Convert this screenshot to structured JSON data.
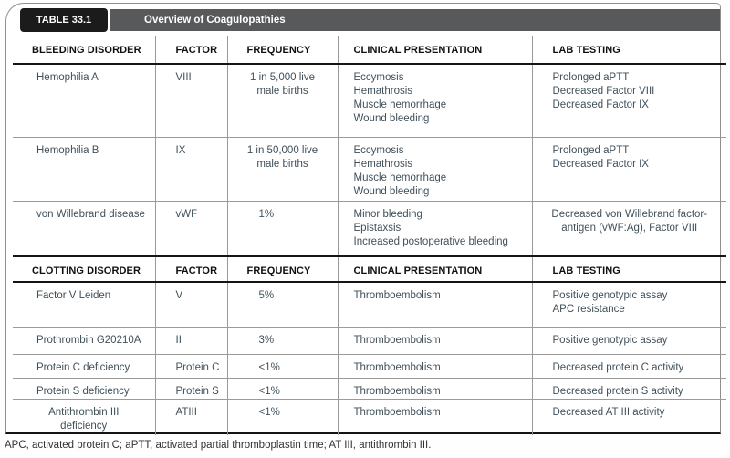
{
  "table": {
    "label": "TABLE 33.1",
    "title": "Overview of Coagulopathies",
    "sections": [
      {
        "headers": [
          "BLEEDING DISORDER",
          "FACTOR",
          "FREQUENCY",
          "CLINICAL PRESENTATION",
          "LAB TESTING"
        ],
        "rows": [
          {
            "disorder": "Hemophilia A",
            "factor": "VIII",
            "frequency": "1 in 5,000 live\nmale births",
            "clinical": "Eccymosis\nHemathrosis\nMuscle hemorrhage\nWound bleeding",
            "lab": "Prolonged aPTT\nDecreased Factor VIII\nDecreased Factor IX"
          },
          {
            "disorder": "Hemophilia B",
            "factor": "IX",
            "frequency": "1 in 50,000 live\nmale births",
            "clinical": "Eccymosis\nHemathrosis\nMuscle hemorrhage\nWound bleeding",
            "lab": "Prolonged aPTT\nDecreased Factor IX"
          },
          {
            "disorder": "von Willebrand disease",
            "factor": "vWF",
            "frequency": "1%",
            "clinical": "Minor bleeding\nEpistaxsis\nIncreased postoperative bleeding",
            "lab": "Decreased von Willebrand factor-\nantigen (vWF:Ag), Factor VIII"
          }
        ]
      },
      {
        "headers": [
          "CLOTTING DISORDER",
          "FACTOR",
          "FREQUENCY",
          "CLINICAL PRESENTATION",
          "LAB TESTING"
        ],
        "rows": [
          {
            "disorder": "Factor V Leiden",
            "factor": "V",
            "frequency": "5%",
            "clinical": "Thromboembolism",
            "lab": "Positive genotypic assay\nAPC resistance"
          },
          {
            "disorder": "Prothrombin G20210A",
            "factor": "II",
            "frequency": "3%",
            "clinical": "Thromboembolism",
            "lab": "Positive genotypic assay"
          },
          {
            "disorder": "Protein C deficiency",
            "factor": "Protein C",
            "frequency": "<1%",
            "clinical": "Thromboembolism",
            "lab": "Decreased protein C activity"
          },
          {
            "disorder": "Protein S deficiency",
            "factor": "Protein S",
            "frequency": "<1%",
            "clinical": "Thromboembolism",
            "lab": "Decreased protein S activity"
          },
          {
            "disorder": "Antithrombin III\ndeficiency",
            "factor": "ATIII",
            "frequency": "<1%",
            "clinical": "Thromboembolism",
            "lab": "Decreased AT III activity"
          }
        ]
      }
    ],
    "footnote": "APC, activated protein C; aPTT, activated partial thromboplastin time; AT III, antithrombin III."
  },
  "colors": {
    "label_background": "#1b1b1b",
    "title_bar_background": "#58595b",
    "header_text": "#101010",
    "body_text": "#40505a",
    "grid_line": "#999999"
  }
}
